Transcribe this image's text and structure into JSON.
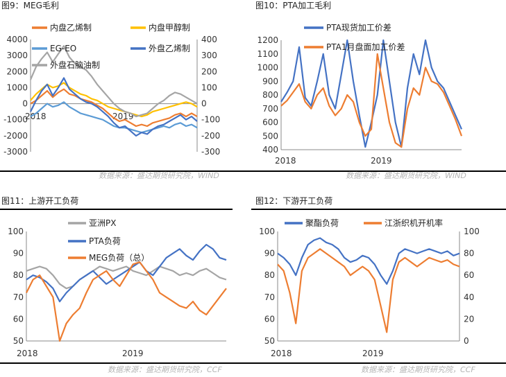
{
  "sources": {
    "top": "数据来源：盛达期货研究院，WIND",
    "bottom": "数据来源：盛达期货研究院，CCF"
  },
  "chart_data": [
    {
      "id": "meg",
      "type": "line",
      "title": "图9：MEG毛利",
      "left_axis": {
        "min": -3000,
        "max": 4000,
        "ticks": [
          -3000,
          -2000,
          -1000,
          0,
          1000,
          2000,
          3000,
          4000
        ]
      },
      "right_axis": {
        "min": -300,
        "max": 400,
        "ticks": [
          -300,
          -200,
          -100,
          0,
          100,
          200,
          300,
          400
        ]
      },
      "x_labels": [
        "2018",
        "2019"
      ],
      "legend_placement": "top",
      "grid": false,
      "series": [
        {
          "name": "内盘乙烯制",
          "axis": "left",
          "color": "#ED7D31",
          "values": [
            0,
            200,
            500,
            800,
            400,
            700,
            900,
            600,
            500,
            300,
            200,
            100,
            -100,
            -300,
            -600,
            -900,
            -1100,
            -1000,
            -1200,
            -1400,
            -1300,
            -1400,
            -1200,
            -1100,
            -1000,
            -900,
            -700,
            -600,
            -800,
            -600,
            -800
          ]
        },
        {
          "name": "内盘甲醇制",
          "axis": "left",
          "color": "#FFC000",
          "values": [
            200,
            600,
            900,
            1200,
            1000,
            1100,
            1300,
            1000,
            800,
            600,
            500,
            300,
            200,
            0,
            -200,
            -300,
            -400,
            -500,
            -600,
            -700,
            -800,
            -700,
            -500,
            -400,
            -300,
            -200,
            -100,
            0,
            100,
            0,
            -200
          ]
        },
        {
          "name": "EG-EO",
          "axis": "left",
          "color": "#5B9BD5",
          "values": [
            -800,
            -600,
            -300,
            0,
            -200,
            -100,
            100,
            -200,
            -400,
            -600,
            -700,
            -800,
            -900,
            -1000,
            -1200,
            -1400,
            -1500,
            -1500,
            -1600,
            -1700,
            -1800,
            -1700,
            -1600,
            -1500,
            -1400,
            -1500,
            -1300,
            -1200,
            -1400,
            -1300,
            -1500
          ]
        },
        {
          "name": "外盘乙烯制",
          "axis": "right",
          "color": "#4472C4",
          "values": [
            -50,
            20,
            80,
            120,
            50,
            100,
            160,
            90,
            60,
            30,
            10,
            0,
            -20,
            -50,
            -80,
            -120,
            -150,
            -140,
            -170,
            -200,
            -180,
            -190,
            -160,
            -140,
            -130,
            -110,
            -90,
            -70,
            -100,
            -80,
            -110
          ]
        },
        {
          "name": "外盘石脑油制",
          "axis": "right",
          "color": "#A5A5A5",
          "values": [
            150,
            230,
            280,
            320,
            260,
            310,
            360,
            290,
            250,
            230,
            210,
            170,
            120,
            80,
            40,
            0,
            -30,
            -50,
            -60,
            -80,
            -70,
            -60,
            -30,
            0,
            20,
            50,
            70,
            60,
            40,
            20,
            0
          ]
        }
      ]
    },
    {
      "id": "pta",
      "type": "line",
      "title": "图10：PTA加工毛利",
      "left_axis": {
        "min": 400,
        "max": 1200,
        "ticks": [
          400,
          500,
          600,
          700,
          800,
          900,
          1000,
          1100,
          1200
        ]
      },
      "x_labels": [
        "2018",
        "2019"
      ],
      "legend_placement": "top",
      "grid": false,
      "series": [
        {
          "name": "PTA现货加工价差",
          "axis": "left",
          "color": "#4472C4",
          "values": [
            750,
            820,
            900,
            1150,
            780,
            720,
            900,
            1100,
            800,
            700,
            950,
            1200,
            900,
            650,
            420,
            600,
            800,
            1200,
            900,
            600,
            420,
            850,
            1100,
            950,
            1200,
            1000,
            900,
            850,
            750,
            650,
            550
          ]
        },
        {
          "name": "PTA1月盘面加工价差",
          "axis": "left",
          "color": "#ED7D31",
          "values": [
            720,
            760,
            820,
            880,
            750,
            700,
            800,
            850,
            720,
            650,
            700,
            800,
            750,
            600,
            500,
            550,
            1100,
            850,
            600,
            450,
            420,
            700,
            850,
            800,
            1000,
            900,
            880,
            820,
            720,
            620,
            500
          ]
        }
      ]
    },
    {
      "id": "upstream",
      "type": "line",
      "title": "图11：上游开工负荷",
      "left_axis": {
        "min": 50,
        "max": 100,
        "ticks": [
          50,
          60,
          70,
          80,
          90,
          100
        ]
      },
      "x_labels": [
        "2018",
        "2019"
      ],
      "legend_placement": "top",
      "grid": false,
      "series": [
        {
          "name": "亚洲PX",
          "axis": "left",
          "color": "#A5A5A5",
          "values": [
            82,
            83,
            84,
            83,
            80,
            76,
            74,
            75,
            78,
            80,
            82,
            84,
            83,
            82,
            83,
            84,
            82,
            81,
            80,
            82,
            84,
            83,
            82,
            80,
            81,
            80,
            82,
            83,
            81,
            79,
            78
          ]
        },
        {
          "name": "PTA负荷",
          "axis": "left",
          "color": "#4472C4",
          "values": [
            78,
            80,
            79,
            77,
            74,
            68,
            72,
            75,
            78,
            80,
            82,
            79,
            76,
            78,
            80,
            82,
            84,
            86,
            82,
            80,
            84,
            88,
            90,
            92,
            89,
            87,
            91,
            94,
            92,
            88,
            87
          ]
        },
        {
          "name": "MEG负荷（总）",
          "axis": "left",
          "color": "#ED7D31",
          "values": [
            72,
            78,
            80,
            75,
            70,
            50,
            58,
            62,
            65,
            72,
            78,
            80,
            82,
            78,
            75,
            80,
            85,
            86,
            82,
            78,
            72,
            70,
            68,
            66,
            65,
            68,
            64,
            62,
            66,
            70,
            74
          ]
        }
      ]
    },
    {
      "id": "downstream",
      "type": "line",
      "title": "图12：下游开工负荷",
      "left_axis": {
        "min": 50,
        "max": 100,
        "ticks": [
          50,
          60,
          70,
          80,
          90,
          100
        ]
      },
      "right_axis": {
        "min": 0,
        "max": 100,
        "ticks": [
          0,
          20,
          40,
          60,
          80,
          100
        ]
      },
      "x_labels": [
        "2018",
        "2019"
      ],
      "legend_placement": "top",
      "grid": false,
      "series": [
        {
          "name": "聚酯负荷",
          "axis": "left",
          "color": "#4472C4",
          "values": [
            90,
            88,
            85,
            80,
            88,
            94,
            96,
            97,
            95,
            94,
            92,
            88,
            86,
            87,
            89,
            88,
            85,
            80,
            76,
            82,
            90,
            92,
            91,
            90,
            91,
            92,
            91,
            90,
            91,
            89,
            90
          ]
        },
        {
          "name": "江浙织机开机率",
          "axis": "left",
          "color": "#ED7D31",
          "values": [
            85,
            82,
            72,
            58,
            82,
            88,
            90,
            92,
            90,
            88,
            86,
            84,
            80,
            82,
            84,
            82,
            78,
            66,
            54,
            78,
            86,
            88,
            86,
            84,
            86,
            88,
            87,
            86,
            87,
            85,
            84
          ]
        }
      ]
    }
  ]
}
